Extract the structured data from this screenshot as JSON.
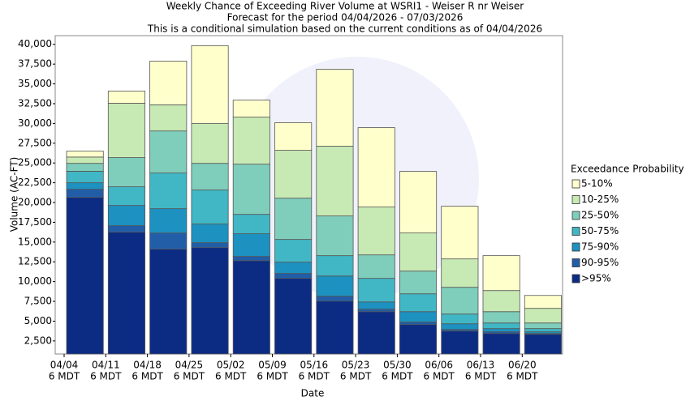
{
  "chart_data": {
    "type": "stacked_bar",
    "title": "Weekly Chance of Exceeding River Volume at WSRI1 - Weiser R nr Weiser",
    "subtitle": "Forecast for the period 04/04/2026 - 07/03/2026",
    "subtitle2": "This is a conditional simulation based on the current conditions as of 04/04/2026",
    "x_label": "Date",
    "y_label": "Volume (AC-FT)",
    "legend_title": "Exceedance Probability",
    "categories": [
      "04/04",
      "04/11",
      "04/18",
      "04/25",
      "05/02",
      "05/09",
      "05/16",
      "05/23",
      "05/30",
      "06/06",
      "06/13",
      "06/20"
    ],
    "category_times": [
      "6 MDT",
      "6 MDT",
      "6 MDT",
      "6 MDT",
      "6 MDT",
      "6 MDT",
      "6 MDT",
      "6 MDT",
      "6 MDT",
      "6 MDT",
      "6 MDT",
      "6 MDT"
    ],
    "series": [
      {
        "name": ">95%",
        "color": "#0c2c84",
        "values": [
          19800,
          15400,
          13250,
          13450,
          11800,
          9560,
          6690,
          5350,
          3720,
          2900,
          2590,
          2490
        ]
      },
      {
        "name": "90-95%",
        "color": "#225ea8",
        "values": [
          1030,
          820,
          2050,
          620,
          530,
          620,
          610,
          310,
          310,
          200,
          210,
          100
        ]
      },
      {
        "name": "75-90%",
        "color": "#1d91c0",
        "values": [
          820,
          2560,
          3070,
          2360,
          2870,
          1430,
          2560,
          920,
          1320,
          720,
          410,
          210
        ]
      },
      {
        "name": "50-75%",
        "color": "#41b6c4",
        "values": [
          1450,
          2360,
          4510,
          4300,
          2450,
          2870,
          2570,
          2980,
          2260,
          1230,
          710,
          410
        ]
      },
      {
        "name": "25-50%",
        "color": "#7fcdbb",
        "values": [
          1000,
          3690,
          5320,
          3370,
          6350,
          5220,
          5020,
          2970,
          2870,
          3380,
          1430,
          710
        ]
      },
      {
        "name": "10-25%",
        "color": "#c7e9b4",
        "values": [
          800,
          6870,
          3300,
          5030,
          5950,
          6050,
          8820,
          6050,
          4820,
          3590,
          2670,
          1850
        ]
      },
      {
        "name": "5-10%",
        "color": "#ffffcc",
        "values": [
          750,
          1550,
          5530,
          9850,
          2150,
          3490,
          9730,
          10040,
          7790,
          6660,
          4410,
          1630
        ]
      }
    ],
    "ylim": [
      850,
      41100
    ],
    "yticks": [
      {
        "value": 2500,
        "label": "2,500"
      },
      {
        "value": 5000,
        "label": "5,000"
      },
      {
        "value": 7500,
        "label": "7,500"
      },
      {
        "value": 10000,
        "label": "10,000"
      },
      {
        "value": 12500,
        "label": "12,500"
      },
      {
        "value": 15000,
        "label": "15,000"
      },
      {
        "value": 17500,
        "label": "17,500"
      },
      {
        "value": 20000,
        "label": "20,000"
      },
      {
        "value": 22500,
        "label": "22,500"
      },
      {
        "value": 25000,
        "label": "25,000"
      },
      {
        "value": 27500,
        "label": "27,500"
      },
      {
        "value": 30000,
        "label": "30,000"
      },
      {
        "value": 32500,
        "label": "32,500"
      },
      {
        "value": 35000,
        "label": "35,000"
      },
      {
        "value": 37500,
        "label": "37,500"
      },
      {
        "value": 40000,
        "label": "40,000"
      }
    ],
    "grid": false
  }
}
